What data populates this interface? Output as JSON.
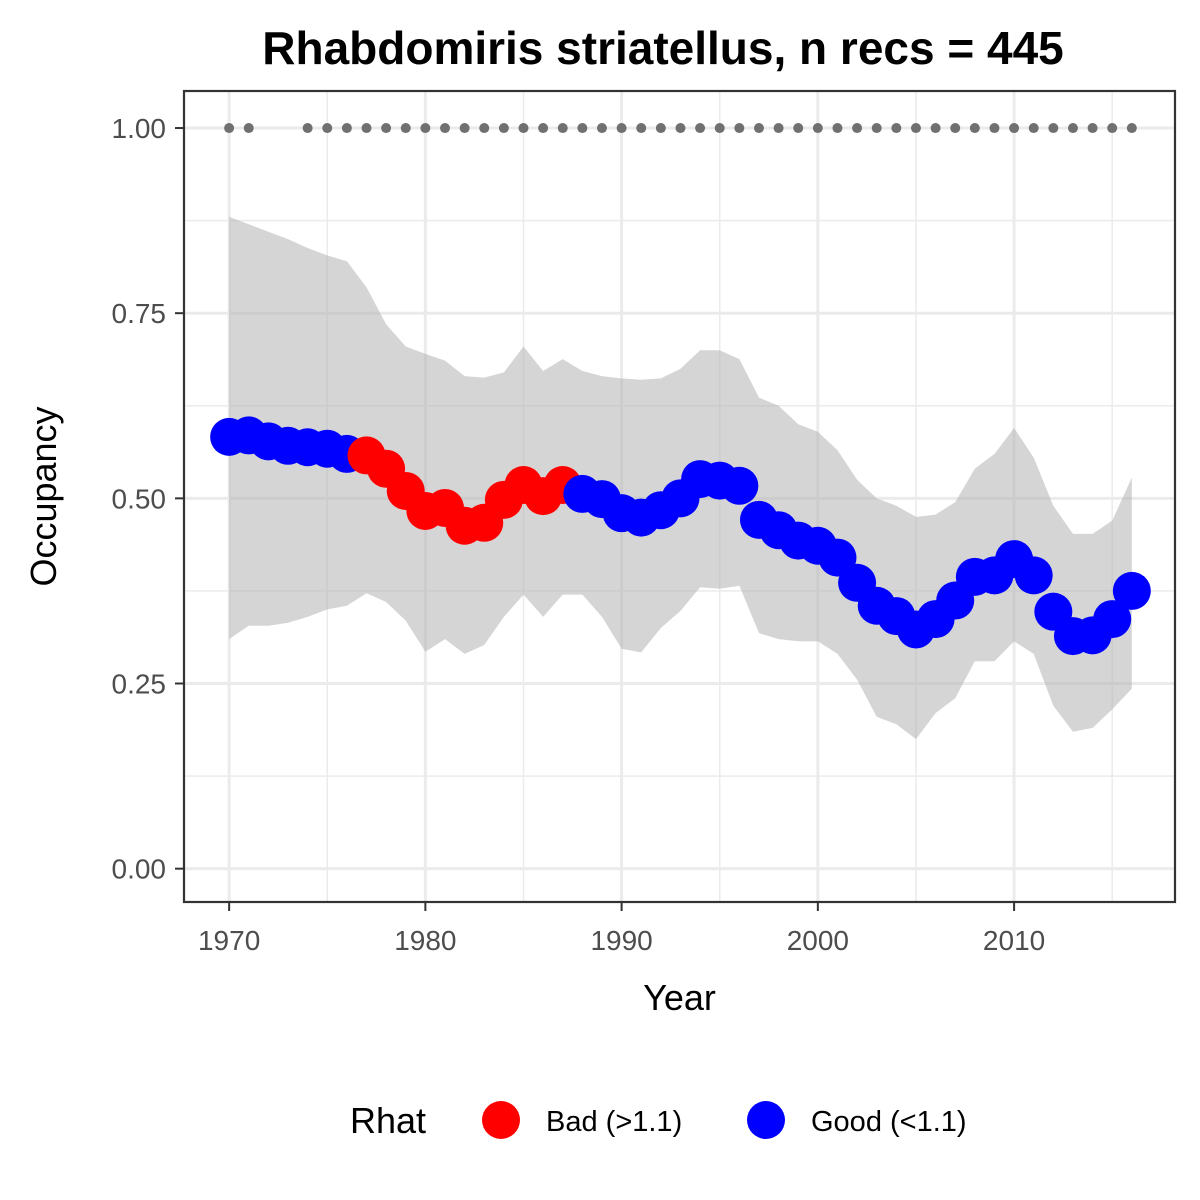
{
  "chart_data": {
    "type": "line",
    "title": "Rhabdomiris striatellus, n recs = 445",
    "xlabel": "Year",
    "ylabel": "Occupancy",
    "xlim": [
      1967.7,
      2018.2
    ],
    "ylim": [
      -0.045,
      1.05
    ],
    "x_ticks": [
      1970,
      1980,
      1990,
      2000,
      2010
    ],
    "x_tick_labels": [
      "1970",
      "1980",
      "1990",
      "2000",
      "2010"
    ],
    "x_minor_ticks": [
      1975,
      1985,
      1995,
      2005,
      2015
    ],
    "y_ticks": [
      0,
      0.25,
      0.5,
      0.75,
      1.0
    ],
    "y_tick_labels": [
      "0.00",
      "0.25",
      "0.50",
      "0.75",
      "1.00"
    ],
    "y_minor_ticks": [
      0.125,
      0.375,
      0.625,
      0.875
    ],
    "grid": true,
    "colors": {
      "bad": "#ff0000",
      "good": "#0000ff",
      "ribbon": "#b3b3b3",
      "record_dots": "#707070",
      "grid": "#ebebeb",
      "panel_border": "#333333"
    },
    "series": [
      {
        "type": "points",
        "x": [
          1970,
          1971,
          1972,
          1973,
          1974,
          1975,
          1976,
          1977,
          1978,
          1979,
          1980,
          1981,
          1982,
          1983,
          1984,
          1985,
          1986,
          1987,
          1988,
          1989,
          1990,
          1991,
          1992,
          1993,
          1994,
          1995,
          1996,
          1997,
          1998,
          1999,
          2000,
          2001,
          2002,
          2003,
          2004,
          2005,
          2006,
          2007,
          2008,
          2009,
          2010,
          2011,
          2012,
          2013,
          2014,
          2015,
          2016
        ],
        "y": [
          0.583,
          0.585,
          0.577,
          0.571,
          0.569,
          0.567,
          0.56,
          0.558,
          0.54,
          0.51,
          0.483,
          0.487,
          0.463,
          0.467,
          0.498,
          0.518,
          0.503,
          0.518,
          0.506,
          0.499,
          0.48,
          0.474,
          0.484,
          0.5,
          0.526,
          0.524,
          0.517,
          0.471,
          0.457,
          0.443,
          0.436,
          0.42,
          0.386,
          0.355,
          0.341,
          0.323,
          0.337,
          0.362,
          0.394,
          0.396,
          0.418,
          0.396,
          0.347,
          0.314,
          0.315,
          0.337,
          0.375
        ],
        "rhat": [
          "good",
          "good",
          "good",
          "good",
          "good",
          "good",
          "good",
          "bad",
          "bad",
          "bad",
          "bad",
          "bad",
          "bad",
          "bad",
          "bad",
          "bad",
          "bad",
          "bad",
          "good",
          "good",
          "good",
          "good",
          "good",
          "good",
          "good",
          "good",
          "good",
          "good",
          "good",
          "good",
          "good",
          "good",
          "good",
          "good",
          "good",
          "good",
          "good",
          "good",
          "good",
          "good",
          "good",
          "good",
          "good",
          "good",
          "good",
          "good",
          "good"
        ]
      },
      {
        "type": "ribbon",
        "x": [
          1970,
          1971,
          1972,
          1973,
          1974,
          1975,
          1976,
          1977,
          1978,
          1979,
          1980,
          1981,
          1982,
          1983,
          1984,
          1985,
          1986,
          1987,
          1988,
          1989,
          1990,
          1991,
          1992,
          1993,
          1994,
          1995,
          1996,
          1997,
          1998,
          1999,
          2000,
          2001,
          2002,
          2003,
          2004,
          2005,
          2006,
          2007,
          2008,
          2009,
          2010,
          2011,
          2012,
          2013,
          2014,
          2015,
          2016
        ],
        "upper": [
          0.88,
          0.87,
          0.86,
          0.85,
          0.838,
          0.828,
          0.82,
          0.785,
          0.735,
          0.705,
          0.695,
          0.686,
          0.665,
          0.663,
          0.67,
          0.705,
          0.672,
          0.688,
          0.672,
          0.665,
          0.662,
          0.66,
          0.662,
          0.675,
          0.7,
          0.7,
          0.688,
          0.636,
          0.625,
          0.6,
          0.59,
          0.565,
          0.525,
          0.5,
          0.49,
          0.475,
          0.478,
          0.495,
          0.54,
          0.56,
          0.595,
          0.555,
          0.49,
          0.452,
          0.452,
          0.47,
          0.528
        ],
        "lower": [
          0.31,
          0.328,
          0.328,
          0.332,
          0.34,
          0.35,
          0.355,
          0.372,
          0.36,
          0.335,
          0.293,
          0.31,
          0.29,
          0.302,
          0.34,
          0.37,
          0.34,
          0.37,
          0.37,
          0.34,
          0.297,
          0.292,
          0.325,
          0.348,
          0.38,
          0.378,
          0.382,
          0.318,
          0.31,
          0.307,
          0.307,
          0.29,
          0.255,
          0.205,
          0.195,
          0.175,
          0.21,
          0.23,
          0.28,
          0.28,
          0.307,
          0.29,
          0.22,
          0.185,
          0.19,
          0.215,
          0.243
        ]
      },
      {
        "type": "record_years",
        "y": 1.0,
        "x": [
          1970,
          1971,
          1974,
          1975,
          1976,
          1977,
          1978,
          1979,
          1980,
          1981,
          1982,
          1983,
          1984,
          1985,
          1986,
          1987,
          1988,
          1989,
          1990,
          1991,
          1992,
          1993,
          1994,
          1995,
          1996,
          1997,
          1998,
          1999,
          2000,
          2001,
          2002,
          2003,
          2004,
          2005,
          2006,
          2007,
          2008,
          2009,
          2010,
          2011,
          2012,
          2013,
          2014,
          2015,
          2016
        ]
      }
    ],
    "legend": {
      "title": "Rhat",
      "position": "bottom",
      "items": [
        {
          "key": "bad",
          "label": "Bad (>1.1)"
        },
        {
          "key": "good",
          "label": "Good (<1.1)"
        }
      ]
    }
  }
}
